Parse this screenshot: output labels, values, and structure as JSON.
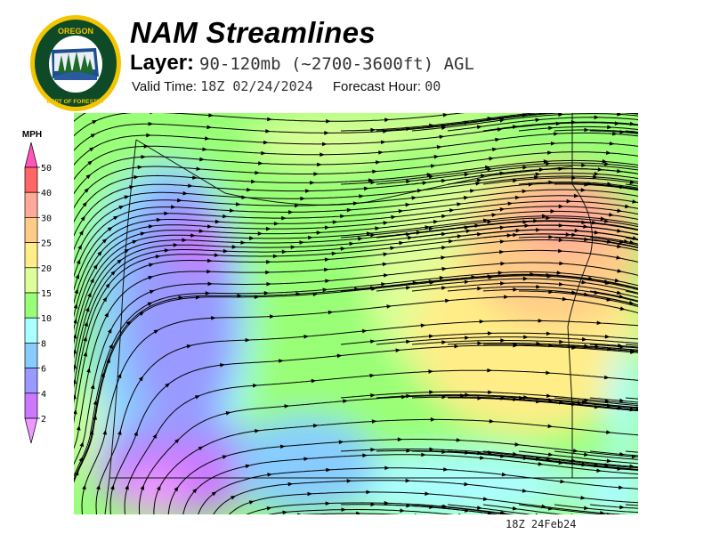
{
  "header": {
    "title": "NAM Streamlines",
    "layer_label": "Layer:",
    "layer_value": "90-120mb (~2700-3600ft) AGL",
    "valid_label": "Valid Time:",
    "valid_value": "18Z 02/24/2024",
    "forecast_label": "Forecast Hour:",
    "forecast_value": "00"
  },
  "logo": {
    "text_top": "OREGON",
    "text_bottom": "DEPARTMENT OF FORESTRY"
  },
  "colorbar": {
    "units": "MPH",
    "labels": [
      "50",
      "40",
      "30",
      "25",
      "20",
      "15",
      "10",
      "8",
      "6",
      "4",
      "2"
    ],
    "colors": [
      "#ff55bb",
      "#ff6666",
      "#ffaa99",
      "#ffcc88",
      "#ffee88",
      "#ddff99",
      "#99ff77",
      "#aaffff",
      "#88ccff",
      "#9999ff",
      "#cc77ff",
      "#ee99ff"
    ]
  },
  "footer": {
    "timestamp": "18Z 24Feb24"
  }
}
